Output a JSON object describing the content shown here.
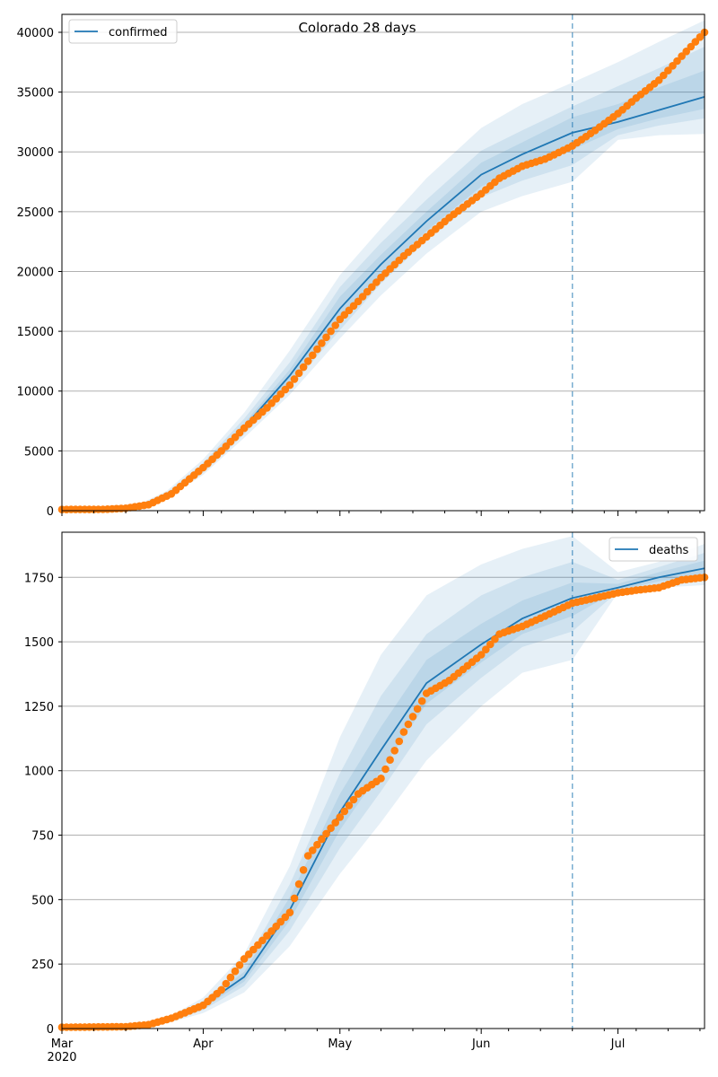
{
  "figure_title": "Colorado 28 days",
  "colors": {
    "model": "#1f77b4",
    "observed": "#ff7f0e",
    "band": "#1f77b4",
    "grid": "#b0b0b0",
    "cutoff": "#1f77b4"
  },
  "x_axis": {
    "start_date": "2020-03-01",
    "end_date": "2020-07-20",
    "major_ticks": [
      {
        "date": "2020-03-01",
        "label": "Mar"
      },
      {
        "date": "2020-04-01",
        "label": "Apr"
      },
      {
        "date": "2020-05-01",
        "label": "May"
      },
      {
        "date": "2020-06-01",
        "label": "Jun"
      },
      {
        "date": "2020-07-01",
        "label": "Jul"
      }
    ],
    "year_label": "2020",
    "cutoff_date": "2020-06-21"
  },
  "chart_data": [
    {
      "type": "line",
      "legend": "confirmed",
      "legend_position": "top-left",
      "ylim": [
        0,
        41500
      ],
      "yticks": [
        0,
        5000,
        10000,
        15000,
        20000,
        25000,
        30000,
        35000,
        40000
      ],
      "grid": "horizontal",
      "model_series": {
        "name": "confirmed",
        "x": [
          "2020-03-01",
          "2020-03-10",
          "2020-03-18",
          "2020-03-24",
          "2020-04-01",
          "2020-04-10",
          "2020-04-20",
          "2020-05-01",
          "2020-05-10",
          "2020-05-20",
          "2020-06-01",
          "2020-06-10",
          "2020-06-21",
          "2020-07-01",
          "2020-07-10",
          "2020-07-20"
        ],
        "y": [
          100,
          120,
          400,
          1300,
          3600,
          7000,
          11300,
          16900,
          20600,
          24200,
          28100,
          29800,
          31600,
          32500,
          33500,
          34600
        ]
      },
      "bands": [
        {
          "lower": [
            100,
            110,
            300,
            1000,
            3000,
            6100,
            9700,
            14400,
            18000,
            21500,
            25000,
            26300,
            27500,
            31000,
            31400,
            31500
          ],
          "upper": [
            100,
            140,
            550,
            1650,
            4300,
            8200,
            13400,
            19700,
            23600,
            27800,
            32000,
            34000,
            35800,
            37500,
            39200,
            41000
          ]
        },
        {
          "lower": [
            100,
            115,
            340,
            1100,
            3200,
            6400,
            10300,
            15100,
            19000,
            22600,
            26200,
            27600,
            28900,
            31400,
            32200,
            32800
          ],
          "upper": [
            100,
            130,
            470,
            1500,
            4000,
            7700,
            12400,
            18700,
            22400,
            26000,
            30100,
            31800,
            33800,
            35500,
            37000,
            38800
          ]
        },
        {
          "lower": [
            100,
            118,
            370,
            1200,
            3400,
            6700,
            10800,
            15900,
            19800,
            23400,
            27100,
            28700,
            30200,
            31900,
            32800,
            33600
          ],
          "upper": [
            100,
            125,
            430,
            1400,
            3800,
            7300,
            11800,
            17900,
            21400,
            25000,
            29100,
            30800,
            32900,
            34000,
            35400,
            36800
          ]
        }
      ],
      "observed": {
        "x": [
          "2020-03-01",
          "2020-03-10",
          "2020-03-15",
          "2020-03-20",
          "2020-03-25",
          "2020-04-01",
          "2020-04-05",
          "2020-04-10",
          "2020-04-15",
          "2020-04-20",
          "2020-04-25",
          "2020-05-01",
          "2020-05-05",
          "2020-05-10",
          "2020-05-15",
          "2020-05-20",
          "2020-05-25",
          "2020-06-01",
          "2020-06-05",
          "2020-06-10",
          "2020-06-15",
          "2020-06-21",
          "2020-06-26",
          "2020-07-01",
          "2020-07-05",
          "2020-07-10",
          "2020-07-15",
          "2020-07-20"
        ],
        "y": [
          100,
          110,
          200,
          500,
          1400,
          3600,
          5000,
          6900,
          8600,
          10500,
          13000,
          16000,
          17500,
          19500,
          21300,
          22900,
          24500,
          26500,
          27800,
          28800,
          29400,
          30500,
          31800,
          33200,
          34500,
          36000,
          38000,
          40000
        ]
      }
    },
    {
      "type": "line",
      "legend": "deaths",
      "legend_position": "top-right",
      "ylim": [
        0,
        1925
      ],
      "yticks": [
        0,
        250,
        500,
        750,
        1000,
        1250,
        1500,
        1750
      ],
      "grid": "horizontal",
      "model_series": {
        "name": "deaths",
        "x": [
          "2020-03-01",
          "2020-03-15",
          "2020-03-24",
          "2020-04-01",
          "2020-04-10",
          "2020-04-20",
          "2020-05-01",
          "2020-05-10",
          "2020-05-20",
          "2020-06-01",
          "2020-06-10",
          "2020-06-21",
          "2020-07-01",
          "2020-07-10",
          "2020-07-20"
        ],
        "y": [
          5,
          8,
          30,
          90,
          200,
          460,
          840,
          1080,
          1340,
          1490,
          1590,
          1670,
          1710,
          1750,
          1785
        ]
      },
      "bands": [
        {
          "lower": [
            5,
            6,
            20,
            60,
            140,
            320,
            600,
            800,
            1040,
            1250,
            1380,
            1430,
            1690,
            1710,
            1720
          ],
          "upper": [
            5,
            10,
            40,
            120,
            290,
            630,
            1130,
            1450,
            1680,
            1800,
            1860,
            1910,
            1770,
            1810,
            1880
          ]
        },
        {
          "lower": [
            5,
            7,
            24,
            72,
            165,
            380,
            700,
            920,
            1180,
            1360,
            1480,
            1540,
            1695,
            1720,
            1740
          ],
          "upper": [
            5,
            9,
            36,
            108,
            245,
            560,
            990,
            1290,
            1530,
            1680,
            1750,
            1810,
            1740,
            1790,
            1845
          ]
        },
        {
          "lower": [
            5,
            7,
            27,
            80,
            182,
            420,
            770,
            1000,
            1260,
            1420,
            1530,
            1600,
            1700,
            1735,
            1760
          ],
          "upper": [
            5,
            9,
            33,
            100,
            220,
            510,
            910,
            1170,
            1430,
            1570,
            1660,
            1730,
            1725,
            1770,
            1815
          ]
        }
      ],
      "observed": {
        "x": [
          "2020-03-01",
          "2020-03-15",
          "2020-03-20",
          "2020-03-25",
          "2020-04-01",
          "2020-04-05",
          "2020-04-10",
          "2020-04-15",
          "2020-04-20",
          "2020-04-24",
          "2020-05-01",
          "2020-05-05",
          "2020-05-10",
          "2020-05-15",
          "2020-05-20",
          "2020-05-25",
          "2020-06-01",
          "2020-06-05",
          "2020-06-10",
          "2020-06-15",
          "2020-06-21",
          "2020-06-26",
          "2020-07-01",
          "2020-07-05",
          "2020-07-10",
          "2020-07-15",
          "2020-07-20"
        ],
        "y": [
          5,
          7,
          15,
          40,
          90,
          150,
          270,
          360,
          450,
          670,
          820,
          910,
          970,
          1150,
          1300,
          1350,
          1450,
          1530,
          1560,
          1600,
          1650,
          1670,
          1690,
          1700,
          1710,
          1740,
          1750
        ]
      }
    }
  ]
}
